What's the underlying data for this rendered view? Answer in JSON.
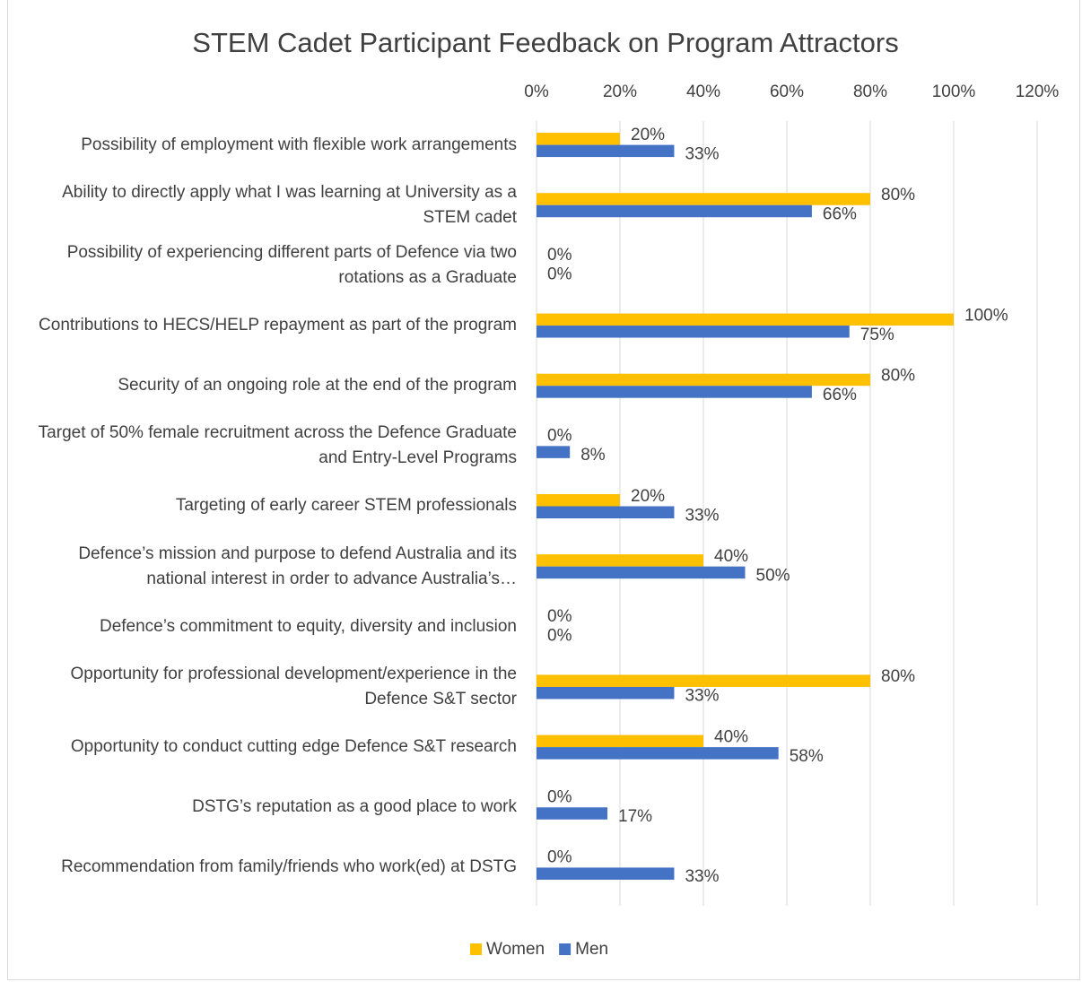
{
  "chart_data": {
    "type": "bar",
    "orientation": "horizontal",
    "title": "STEM Cadet Participant Feedback on Program Attractors",
    "categories": [
      "Possibility of employment with flexible work arrangements",
      "Ability to directly apply what I was learning at University as a STEM cadet",
      "Possibility of experiencing different parts of Defence via two rotations as a Graduate",
      "Contributions to HECS/HELP repayment as part of the program",
      "Security of an ongoing role at the end of the program",
      "Target of 50% female recruitment across the Defence Graduate and Entry-Level Programs",
      "Targeting of early career STEM professionals",
      "Defence’s mission and purpose to defend Australia and its national interest in order to advance Australia’s…",
      "Defence’s commitment to equity, diversity and inclusion",
      "Opportunity for professional development/experience in the Defence S&T sector",
      "Opportunity to conduct cutting edge Defence S&T research",
      "DSTG’s reputation as a good place to work",
      "Recommendation from family/friends who work(ed) at DSTG"
    ],
    "series": [
      {
        "name": "Women",
        "color": "#FFC000",
        "values": [
          20,
          80,
          0,
          100,
          80,
          0,
          20,
          40,
          0,
          80,
          40,
          0,
          0
        ],
        "value_labels": [
          "20%",
          "80%",
          "0%",
          "100%",
          "80%",
          "0%",
          "20%",
          "40%",
          "0%",
          "80%",
          "40%",
          "0%",
          "0%"
        ]
      },
      {
        "name": "Men",
        "color": "#4472C4",
        "values": [
          33,
          66,
          0,
          75,
          66,
          8,
          33,
          50,
          0,
          33,
          58,
          17,
          33
        ],
        "value_labels": [
          "33%",
          "66%",
          "0%",
          "75%",
          "66%",
          "8%",
          "33%",
          "50%",
          "0%",
          "33%",
          "58%",
          "17%",
          "33%"
        ]
      }
    ],
    "xlim": [
      0,
      120
    ],
    "xticks": [
      {
        "value": 0,
        "label": "0%"
      },
      {
        "value": 20,
        "label": "20%"
      },
      {
        "value": 40,
        "label": "40%"
      },
      {
        "value": 60,
        "label": "60%"
      },
      {
        "value": 80,
        "label": "80%"
      },
      {
        "value": 100,
        "label": "100%"
      },
      {
        "value": 120,
        "label": "120%"
      }
    ],
    "grid": true,
    "legend": "bottom"
  }
}
